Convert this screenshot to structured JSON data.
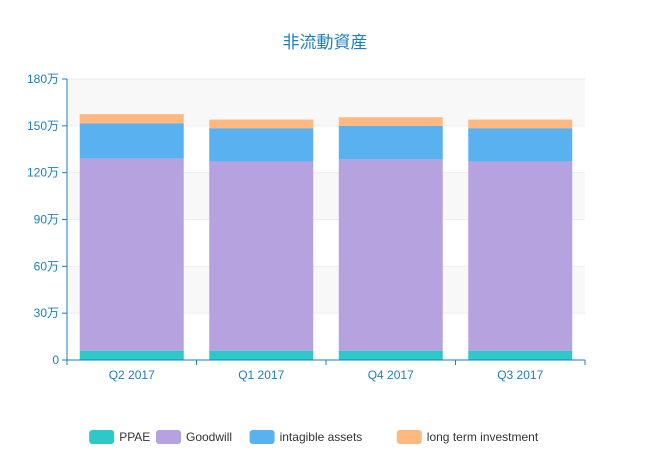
{
  "chart_data": {
    "type": "bar",
    "stacked": true,
    "title": "非流動資産",
    "categories": [
      "Q2 2017",
      "Q1 2017",
      "Q4 2017",
      "Q3 2017"
    ],
    "series": [
      {
        "name": "PPAE",
        "color": "#2ec8c8",
        "values": [
          60000,
          60000,
          60000,
          60000
        ]
      },
      {
        "name": "Goodwill",
        "color": "#b6a2de",
        "values": [
          1230000,
          1210000,
          1225000,
          1210000
        ]
      },
      {
        "name": "intagible assets",
        "color": "#5ab1ef",
        "values": [
          225000,
          215000,
          215000,
          215000
        ]
      },
      {
        "name": "long term investment",
        "color": "#ffb980",
        "values": [
          60000,
          55000,
          55000,
          55000
        ]
      }
    ],
    "ylim": [
      0,
      1800000
    ],
    "yticks": [
      {
        "value": 0,
        "label": "0"
      },
      {
        "value": 300000,
        "label": "30万"
      },
      {
        "value": 600000,
        "label": "60万"
      },
      {
        "value": 900000,
        "label": "90万"
      },
      {
        "value": 1200000,
        "label": "120万"
      },
      {
        "value": 1500000,
        "label": "150万"
      },
      {
        "value": 1800000,
        "label": "180万"
      }
    ],
    "xlabel": "",
    "ylabel": "",
    "grid": true,
    "legend_position": "bottom",
    "axis_color": "#1a7fc1"
  }
}
